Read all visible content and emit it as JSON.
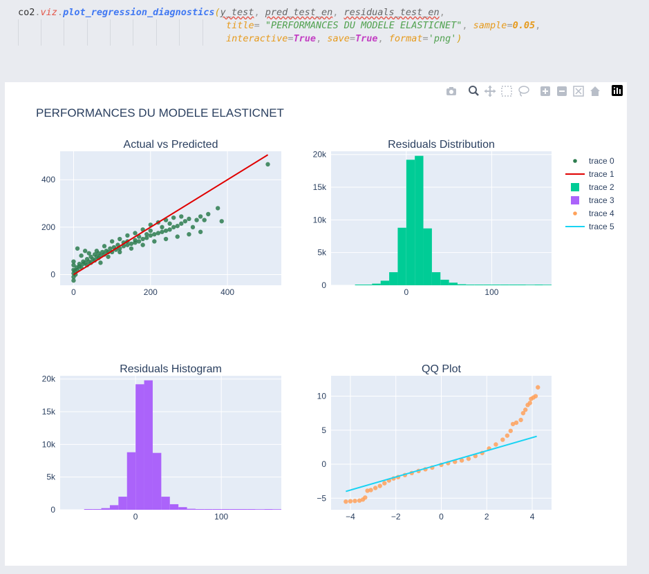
{
  "code": {
    "line1": {
      "obj": "co2",
      "mod": "viz",
      "fn": "plot_regression_diagnostics",
      "args": [
        "y_test",
        "pred_test_en",
        "residuals_test_en"
      ]
    },
    "line2": {
      "k1": "title",
      "v1": "\"PERFORMANCES DU MODELE ELASTICNET\"",
      "k2": "sample",
      "v2": "0.05"
    },
    "line3": {
      "k1": "interactive",
      "v1": "True",
      "k2": "save",
      "v2": "True",
      "k3": "format",
      "v3": "'png'"
    }
  },
  "toolbar": {
    "icons": [
      "camera-icon",
      "zoom-icon",
      "pan-icon",
      "box-select-icon",
      "lasso-select-icon",
      "zoom-in-icon",
      "zoom-out-icon",
      "autoscale-icon",
      "reset-axes-icon",
      "plotly-logo-icon"
    ]
  },
  "figure": {
    "title": "PERFORMANCES DU MODELE ELASTICNET",
    "legend": [
      "trace 0",
      "trace 1",
      "trace 2",
      "trace 3",
      "trace 4",
      "trace 5"
    ],
    "colors": {
      "scatter": "#2e7d4f",
      "line": "#e00000",
      "hist1": "#00cc96",
      "hist2": "#ab63fa",
      "qq": "#ffa15a",
      "qqline": "#19d3f3",
      "plotbg": "#e5ecf6",
      "text": "#2a3f5f"
    }
  },
  "chart_data": [
    {
      "type": "scatter",
      "title": "Actual vs Predicted",
      "xlim": [
        -35,
        540
      ],
      "ylim": [
        -45,
        520
      ],
      "xticks": [
        0,
        200,
        400
      ],
      "yticks": [
        0,
        200,
        400
      ],
      "series": [
        {
          "trace": "trace 0",
          "kind": "markers",
          "points": [
            [
              0,
              -25
            ],
            [
              0,
              -10
            ],
            [
              0,
              5
            ],
            [
              0,
              20
            ],
            [
              0,
              40
            ],
            [
              0,
              55
            ],
            [
              5,
              0
            ],
            [
              10,
              20
            ],
            [
              15,
              35
            ],
            [
              20,
              30
            ],
            [
              25,
              45
            ],
            [
              30,
              50
            ],
            [
              35,
              40
            ],
            [
              40,
              55
            ],
            [
              45,
              50
            ],
            [
              50,
              65
            ],
            [
              55,
              60
            ],
            [
              60,
              75
            ],
            [
              65,
              70
            ],
            [
              70,
              80
            ],
            [
              80,
              85
            ],
            [
              90,
              95
            ],
            [
              100,
              95
            ],
            [
              110,
              105
            ],
            [
              120,
              110
            ],
            [
              130,
              120
            ],
            [
              140,
              125
            ],
            [
              150,
              130
            ],
            [
              160,
              135
            ],
            [
              170,
              140
            ],
            [
              180,
              150
            ],
            [
              190,
              155
            ],
            [
              200,
              165
            ],
            [
              210,
              170
            ],
            [
              220,
              175
            ],
            [
              230,
              180
            ],
            [
              240,
              185
            ],
            [
              250,
              190
            ],
            [
              260,
              200
            ],
            [
              270,
              205
            ],
            [
              280,
              215
            ],
            [
              290,
              225
            ],
            [
              300,
              235
            ],
            [
              310,
              200
            ],
            [
              320,
              230
            ],
            [
              330,
              245
            ],
            [
              340,
              230
            ],
            [
              350,
              255
            ],
            [
              375,
              280
            ],
            [
              385,
              225
            ],
            [
              330,
              180
            ],
            [
              300,
              170
            ],
            [
              270,
              160
            ],
            [
              240,
              150
            ],
            [
              210,
              140
            ],
            [
              180,
              125
            ],
            [
              150,
              110
            ],
            [
              120,
              95
            ],
            [
              90,
              75
            ],
            [
              70,
              50
            ],
            [
              260,
              240
            ],
            [
              240,
              230
            ],
            [
              220,
              220
            ],
            [
              200,
              210
            ],
            [
              180,
              190
            ],
            [
              160,
              175
            ],
            [
              140,
              165
            ],
            [
              120,
              150
            ],
            [
              100,
              140
            ],
            [
              80,
              120
            ],
            [
              60,
              100
            ],
            [
              40,
              90
            ],
            [
              20,
              80
            ],
            [
              10,
              110
            ],
            [
              30,
              100
            ],
            [
              200,
              185
            ],
            [
              250,
              215
            ],
            [
              280,
              245
            ],
            [
              230,
              200
            ],
            [
              190,
              170
            ],
            [
              170,
              160
            ],
            [
              160,
              145
            ],
            [
              140,
              140
            ],
            [
              130,
              135
            ],
            [
              115,
              125
            ],
            [
              105,
              115
            ],
            [
              95,
              110
            ],
            [
              85,
              100
            ],
            [
              75,
              95
            ],
            [
              65,
              90
            ],
            [
              55,
              85
            ],
            [
              45,
              75
            ],
            [
              35,
              65
            ],
            [
              25,
              55
            ],
            [
              15,
              45
            ],
            [
              8,
              30
            ],
            [
              3,
              15
            ],
            [
              505,
              465
            ]
          ]
        },
        {
          "trace": "trace 1",
          "kind": "line",
          "points": [
            [
              0,
              0
            ],
            [
              505,
              505
            ]
          ]
        }
      ]
    },
    {
      "type": "bar",
      "title": "Residuals Distribution",
      "xlim": [
        -88,
        170
      ],
      "ylim": [
        0,
        20500
      ],
      "xticks": [
        0,
        100
      ],
      "yticks": [
        0,
        5000,
        10000,
        15000,
        20000
      ],
      "ytick_labels": [
        "0",
        "5k",
        "10k",
        "15k",
        "20k"
      ],
      "bin_width": 10,
      "bins": [
        [
          -60,
          15
        ],
        [
          -50,
          60
        ],
        [
          -40,
          250
        ],
        [
          -30,
          700
        ],
        [
          -20,
          2000
        ],
        [
          -10,
          8800
        ],
        [
          0,
          19200
        ],
        [
          10,
          19800
        ],
        [
          20,
          8700
        ],
        [
          30,
          2000
        ],
        [
          40,
          850
        ],
        [
          50,
          400
        ],
        [
          60,
          150
        ],
        [
          70,
          60
        ],
        [
          80,
          25
        ],
        [
          90,
          10
        ],
        [
          100,
          10
        ],
        [
          110,
          5
        ],
        [
          120,
          5
        ],
        [
          130,
          5
        ],
        [
          140,
          0
        ],
        [
          150,
          5
        ],
        [
          160,
          0
        ]
      ]
    },
    {
      "type": "bar",
      "title": "Residuals Histogram",
      "xlim": [
        -88,
        170
      ],
      "ylim": [
        0,
        20500
      ],
      "xticks": [
        0,
        100
      ],
      "yticks": [
        0,
        5000,
        10000,
        15000,
        20000
      ],
      "ytick_labels": [
        "0",
        "5k",
        "10k",
        "15k",
        "20k"
      ],
      "bin_width": 10,
      "bins": [
        [
          -60,
          15
        ],
        [
          -50,
          60
        ],
        [
          -40,
          250
        ],
        [
          -30,
          700
        ],
        [
          -20,
          2000
        ],
        [
          -10,
          8800
        ],
        [
          0,
          19200
        ],
        [
          10,
          19800
        ],
        [
          20,
          8700
        ],
        [
          30,
          2000
        ],
        [
          40,
          850
        ],
        [
          50,
          400
        ],
        [
          60,
          150
        ],
        [
          70,
          60
        ],
        [
          80,
          25
        ],
        [
          90,
          10
        ],
        [
          100,
          10
        ],
        [
          110,
          5
        ],
        [
          120,
          5
        ],
        [
          130,
          5
        ],
        [
          140,
          0
        ],
        [
          150,
          5
        ],
        [
          160,
          0
        ]
      ]
    },
    {
      "type": "scatter",
      "title": "QQ Plot",
      "xlim": [
        -4.85,
        4.85
      ],
      "ylim": [
        -6.7,
        13.0
      ],
      "xticks": [
        -4,
        -2,
        0,
        2,
        4
      ],
      "yticks": [
        -5,
        0,
        5,
        10
      ],
      "xtick_labels": [
        "−4",
        "−2",
        "0",
        "2",
        "4"
      ],
      "ytick_labels": [
        "−5",
        "0",
        "5",
        "10"
      ],
      "series": [
        {
          "trace": "trace 4",
          "kind": "markers",
          "points": [
            [
              -4.2,
              -5.5
            ],
            [
              -4.0,
              -5.45
            ],
            [
              -3.8,
              -5.4
            ],
            [
              -3.6,
              -5.35
            ],
            [
              -3.45,
              -5.2
            ],
            [
              -3.35,
              -4.9
            ],
            [
              -3.25,
              -3.9
            ],
            [
              -3.1,
              -3.8
            ],
            [
              -2.9,
              -3.5
            ],
            [
              -2.7,
              -3.2
            ],
            [
              -2.5,
              -2.8
            ],
            [
              -2.3,
              -2.4
            ],
            [
              -2.1,
              -2.1
            ],
            [
              -1.9,
              -1.9
            ],
            [
              -1.6,
              -1.6
            ],
            [
              -1.3,
              -1.3
            ],
            [
              -1.0,
              -1.0
            ],
            [
              -0.7,
              -0.75
            ],
            [
              -0.4,
              -0.5
            ],
            [
              0.0,
              -0.1
            ],
            [
              0.3,
              0.15
            ],
            [
              0.6,
              0.35
            ],
            [
              0.9,
              0.55
            ],
            [
              1.2,
              0.8
            ],
            [
              1.5,
              1.2
            ],
            [
              1.8,
              1.65
            ],
            [
              2.1,
              2.3
            ],
            [
              2.4,
              2.9
            ],
            [
              2.7,
              3.6
            ],
            [
              2.9,
              4.2
            ],
            [
              3.05,
              4.9
            ],
            [
              3.15,
              5.9
            ],
            [
              3.3,
              6.1
            ],
            [
              3.5,
              6.5
            ],
            [
              3.6,
              7.5
            ],
            [
              3.7,
              8.0
            ],
            [
              3.8,
              8.7
            ],
            [
              3.9,
              9.0
            ],
            [
              3.95,
              9.6
            ],
            [
              4.05,
              9.8
            ],
            [
              4.15,
              10.0
            ],
            [
              4.25,
              11.3
            ]
          ]
        },
        {
          "trace": "trace 5",
          "kind": "line",
          "points": [
            [
              -4.2,
              -4.0
            ],
            [
              4.2,
              4.1
            ]
          ]
        }
      ]
    }
  ]
}
